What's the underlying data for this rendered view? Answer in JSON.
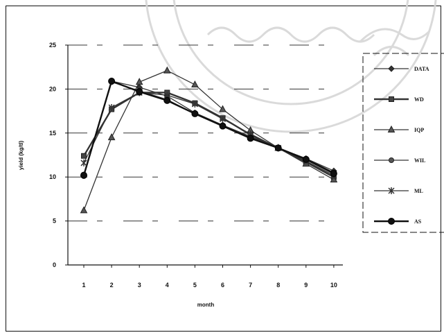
{
  "chart_data": {
    "type": "line",
    "title": "",
    "xlabel": "month",
    "ylabel": "yield (kg/tl)",
    "x": [
      1,
      2,
      3,
      4,
      5,
      6,
      7,
      8,
      9,
      10
    ],
    "ylim": [
      0,
      25
    ],
    "yticks": [
      0,
      5,
      10,
      15,
      20,
      25
    ],
    "grid": "dashed horizontal",
    "legend_position": "right",
    "series": [
      {
        "name": "DATA",
        "marker": "diamond",
        "color": "#333333",
        "values": [
          10.2,
          20.9,
          20.2,
          19.2,
          17.3,
          15.9,
          14.6,
          13.3,
          12.1,
          10.7
        ]
      },
      {
        "name": "WD",
        "marker": "square",
        "color": "#333333",
        "values": [
          12.4,
          17.7,
          19.6,
          19.6,
          18.4,
          16.7,
          14.8,
          13.3,
          11.7,
          10.0
        ]
      },
      {
        "name": "IQP",
        "marker": "triangle",
        "color": "#333333",
        "values": [
          6.2,
          14.5,
          20.8,
          22.1,
          20.5,
          17.7,
          15.3,
          13.3,
          11.5,
          9.7
        ]
      },
      {
        "name": "WIL",
        "marker": "circle",
        "color": "#333333",
        "values": [
          10.1,
          20.8,
          19.8,
          18.8,
          17.2,
          15.8,
          14.5,
          13.3,
          12.1,
          10.5
        ]
      },
      {
        "name": "ML",
        "marker": "star",
        "color": "#333333",
        "values": [
          11.6,
          17.9,
          19.6,
          19.3,
          18.3,
          16.6,
          14.9,
          13.3,
          11.8,
          10.2
        ]
      },
      {
        "name": "AS",
        "marker": "circle-large",
        "color": "#111111",
        "values": [
          10.2,
          20.9,
          19.7,
          18.7,
          17.2,
          15.8,
          14.4,
          13.3,
          12.0,
          10.4
        ]
      }
    ]
  }
}
